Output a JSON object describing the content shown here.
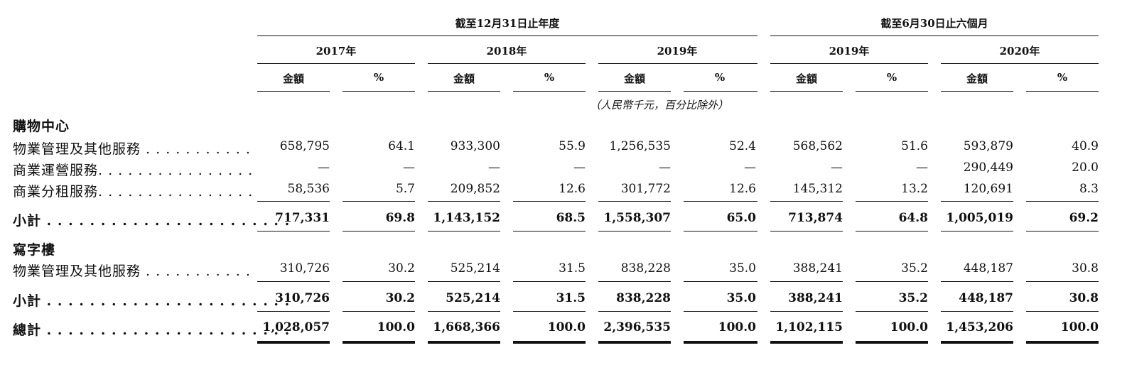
{
  "header": {
    "group1": "截至12月31日止年度",
    "group2": "截至6月30日止六個月",
    "periods": [
      "2017年",
      "2018年",
      "2019年",
      "2019年",
      "2020年"
    ],
    "amount_label": "金額",
    "pct_label": "%",
    "unit_note": "（人民幣千元，百分比除外）"
  },
  "sections": [
    {
      "title": "購物中心",
      "rows": [
        {
          "label": "物業管理及其他服務 . . . . . . . . . . .",
          "values": [
            "658,795",
            "64.1",
            "933,300",
            "55.9",
            "1,256,535",
            "52.4",
            "568,562",
            "51.6",
            "593,879",
            "40.9"
          ]
        },
        {
          "label": "商業運營服務. . . . . . . . . . . . . . . .",
          "values": [
            "—",
            "—",
            "—",
            "—",
            "—",
            "—",
            "—",
            "—",
            "290,449",
            "20.0"
          ]
        },
        {
          "label": "商業分租服務. . . . . . . . . . . . . . . .",
          "values": [
            "58,536",
            "5.7",
            "209,852",
            "12.6",
            "301,772",
            "12.6",
            "145,312",
            "13.2",
            "120,691",
            "8.3"
          ]
        }
      ],
      "subtotal": {
        "label": "小計 . . . . . . . . . . . . . . . . . . . . . . .",
        "values": [
          "717,331",
          "69.8",
          "1,143,152",
          "68.5",
          "1,558,307",
          "65.0",
          "713,874",
          "64.8",
          "1,005,019",
          "69.2"
        ]
      }
    },
    {
      "title": "寫字樓",
      "rows": [
        {
          "label": "物業管理及其他服務 . . . . . . . . . . .",
          "values": [
            "310,726",
            "30.2",
            "525,214",
            "31.5",
            "838,228",
            "35.0",
            "388,241",
            "35.2",
            "448,187",
            "30.8"
          ]
        }
      ],
      "subtotal": {
        "label": "小計 . . . . . . . . . . . . . . . . . . . . . . .",
        "values": [
          "310,726",
          "30.2",
          "525,214",
          "31.5",
          "838,228",
          "35.0",
          "388,241",
          "35.2",
          "448,187",
          "30.8"
        ]
      }
    }
  ],
  "total": {
    "label": "總計 . . . . . . . . . . . . . . . . . . . . . . .",
    "values": [
      "1,028,057",
      "100.0",
      "1,668,366",
      "100.0",
      "2,396,535",
      "100.0",
      "1,102,115",
      "100.0",
      "1,453,206",
      "100.0"
    ]
  }
}
